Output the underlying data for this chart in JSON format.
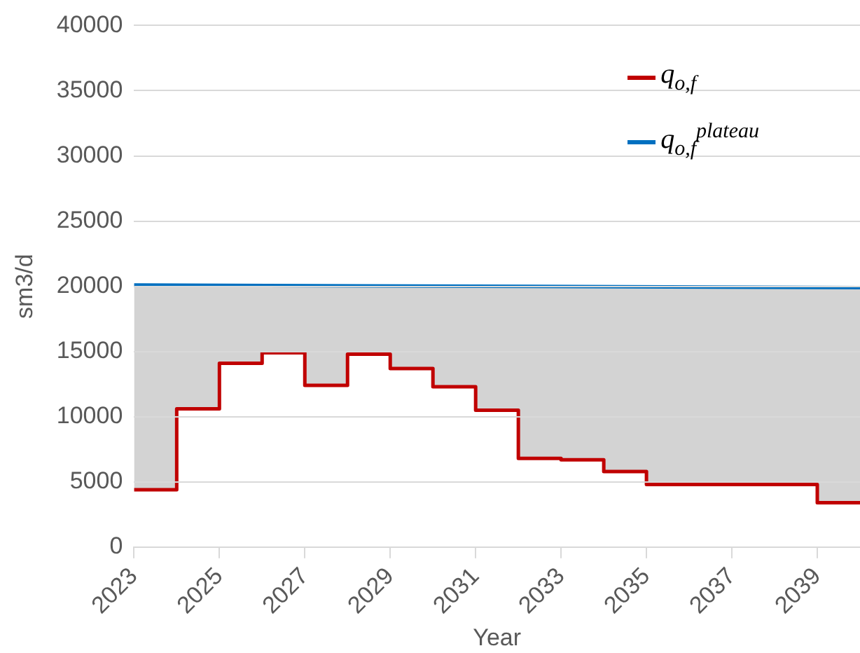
{
  "chart_data": {
    "type": "step",
    "xlabel": "Year",
    "ylabel": "sm3/d",
    "x": [
      2023,
      2024,
      2025,
      2026,
      2027,
      2028,
      2029,
      2030,
      2031,
      2032,
      2033,
      2034,
      2035,
      2036,
      2037,
      2038,
      2039,
      2040
    ],
    "series": [
      {
        "name": "q$_{o,f}$",
        "color": "#c00000",
        "values": [
          4400,
          10600,
          14100,
          14900,
          12400,
          14800,
          13700,
          12300,
          10500,
          6800,
          6700,
          5800,
          4800,
          4800,
          4800,
          4800,
          3400,
          3400
        ]
      },
      {
        "name": "q$_{o,f}$$^{plateau}$",
        "type": "area",
        "color": "#0070c0",
        "x": [
          2023,
          2040
        ],
        "values": [
          20100,
          19900
        ]
      }
    ],
    "xlim": [
      2023,
      2040
    ],
    "xticks": [
      2023,
      2025,
      2027,
      2029,
      2031,
      2033,
      2035,
      2037,
      2039
    ],
    "ylim": [
      0,
      40000
    ],
    "yticks": [
      0,
      5000,
      10000,
      15000,
      20000,
      25000,
      30000,
      35000,
      40000
    ],
    "grid": "y",
    "legend": "top right"
  }
}
